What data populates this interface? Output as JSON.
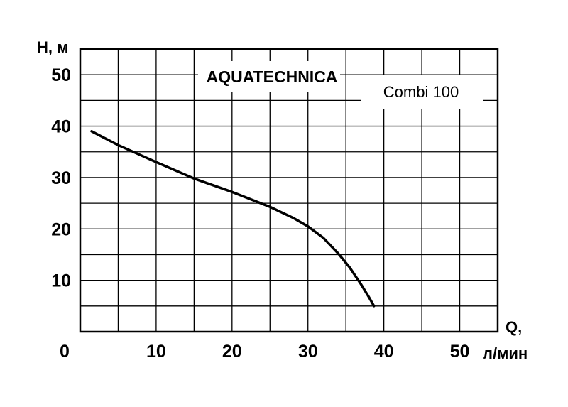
{
  "chart_data": {
    "type": "line",
    "title": "AQUATECHNICA",
    "subtitle": "Combi 100",
    "xlabel_prefix": "Q,",
    "xlabel_unit": "л/мин",
    "ylabel": "H, м",
    "xlim": [
      0,
      55
    ],
    "ylim": [
      0,
      55
    ],
    "x_ticks": [
      10,
      20,
      30,
      40,
      50
    ],
    "x_tick_labels": [
      "10",
      "20",
      "30",
      "40",
      "50"
    ],
    "y_ticks": [
      10,
      20,
      30,
      40,
      50
    ],
    "y_tick_labels": [
      "10",
      "20",
      "30",
      "40",
      "50"
    ],
    "origin_label": "0",
    "grid": true,
    "grid_step": 5,
    "series": [
      {
        "color": "#000000",
        "x": [
          1.5,
          5,
          10,
          15,
          20,
          25,
          28,
          30,
          32,
          34,
          35.5,
          37,
          38,
          38.7
        ],
        "y": [
          39,
          36.3,
          33,
          29.8,
          27.2,
          24.3,
          22.2,
          20.5,
          18.3,
          15.2,
          12.5,
          9.2,
          6.8,
          5
        ]
      }
    ]
  }
}
